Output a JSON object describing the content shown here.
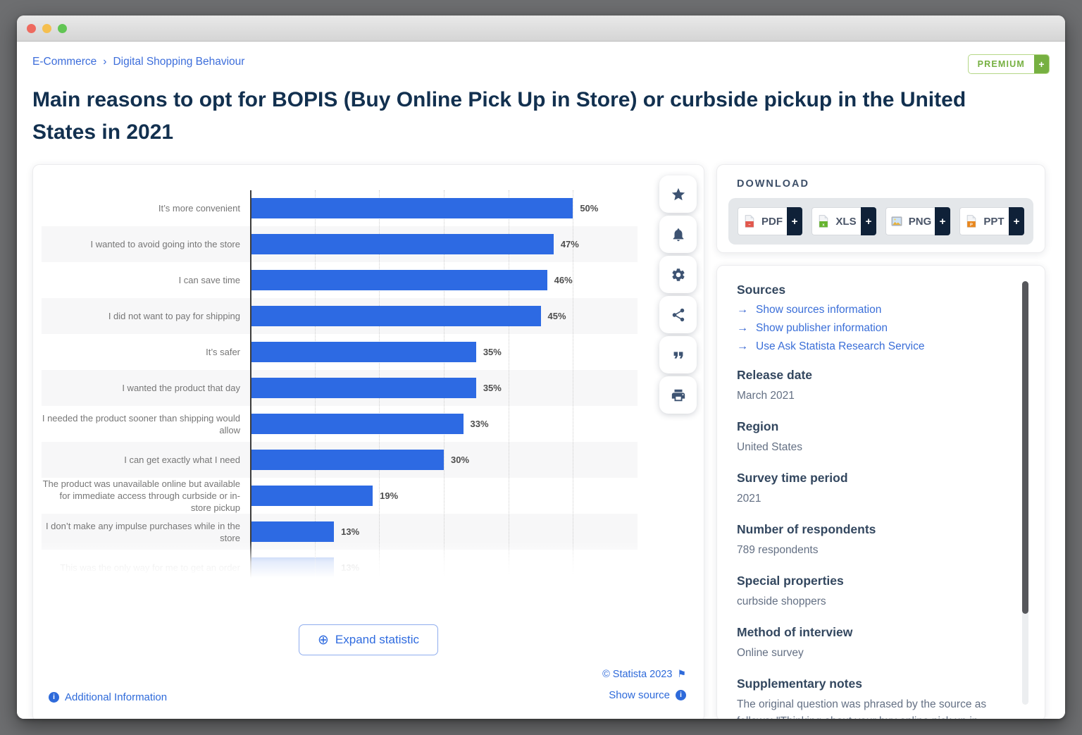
{
  "window": {
    "traffic_lights": {
      "close": "#ee6a5f",
      "minimize": "#f5bf4f",
      "zoom": "#61c554"
    }
  },
  "breadcrumb": {
    "items": [
      "E-Commerce",
      "Digital Shopping Behaviour"
    ],
    "separator": "›"
  },
  "premium_badge": {
    "label": "PREMIUM",
    "plus": "+",
    "color": "#76b041"
  },
  "page_title": "Main reasons to opt for BOPIS (Buy Online Pick Up in Store) or curbside pickup in the United States in 2021",
  "chart_data": {
    "type": "bar",
    "orientation": "horizontal",
    "title": "Main reasons to opt for BOPIS (Buy Online Pick Up in Store) or curbside pickup in the United States in 2021",
    "unit": "%",
    "categories": [
      "It’s more convenient",
      "I wanted to avoid going into the store",
      "I can save time",
      "I did not want to pay for shipping",
      "It’s safer",
      "I wanted the product that day",
      "I needed the product sooner than shipping would allow",
      "I can get exactly what I need",
      "The product was unavailable online but available for immediate access through curbside or in-store pickup",
      "I don’t make any impulse purchases while in the store",
      "This was the only way for me to get an order"
    ],
    "values": [
      50,
      47,
      46,
      45,
      35,
      35,
      33,
      30,
      19,
      13,
      13
    ],
    "xlim": [
      0,
      60
    ],
    "gridline_step": 10,
    "grid": true,
    "bar_color": "#2d6ae3",
    "stripe_color": "#f7f7f8",
    "truncated_last_row": true
  },
  "chart_card": {
    "expand_button": "Expand statistic",
    "expand_icon": "⊕",
    "additional_info": "Additional Information",
    "copyright": "© Statista 2023",
    "show_source": "Show source",
    "info_glyph": "i",
    "flag_glyph": "⚑"
  },
  "action_toolbar": {
    "items": [
      {
        "icon": "star-icon"
      },
      {
        "icon": "bell-icon"
      },
      {
        "icon": "gear-icon"
      },
      {
        "icon": "share-icon"
      },
      {
        "icon": "quote-icon"
      },
      {
        "icon": "print-icon"
      }
    ]
  },
  "download": {
    "heading": "DOWNLOAD",
    "plus": "+",
    "buttons": [
      {
        "label": "PDF",
        "icon": "pdf-file-icon"
      },
      {
        "label": "XLS",
        "icon": "xls-file-icon"
      },
      {
        "label": "PNG",
        "icon": "png-file-icon"
      },
      {
        "label": "PPT",
        "icon": "ppt-file-icon"
      }
    ]
  },
  "info_panel": {
    "sources_heading": "Sources",
    "links": [
      "Show sources information",
      "Show publisher information",
      "Use Ask Statista Research Service"
    ],
    "link_arrow": "→",
    "fields": [
      {
        "label": "Release date",
        "value": "March 2021"
      },
      {
        "label": "Region",
        "value": "United States"
      },
      {
        "label": "Survey time period",
        "value": "2021"
      },
      {
        "label": "Number of respondents",
        "value": "789 respondents"
      },
      {
        "label": "Special properties",
        "value": "curbside shoppers"
      },
      {
        "label": "Method of interview",
        "value": "Online survey"
      },
      {
        "label": "Supplementary notes",
        "value": "The original question was phrased by the source as follows: \"Thinking about your buy online pick up in-"
      }
    ]
  }
}
